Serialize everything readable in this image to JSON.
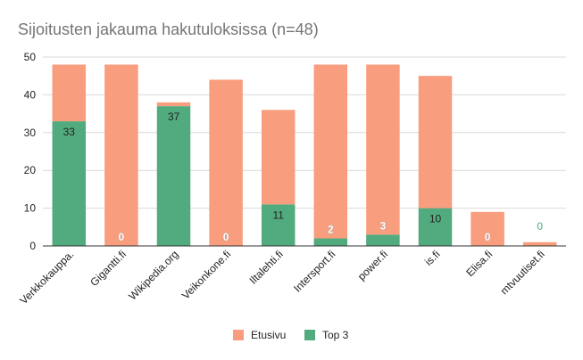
{
  "chart_data": {
    "type": "bar",
    "stacked": true,
    "title": "Sijoitusten jakauma hakutuloksissa (n=48)",
    "xlabel": "",
    "ylabel": "",
    "ylim": [
      0,
      50
    ],
    "yticks": [
      0,
      10,
      20,
      30,
      40,
      50
    ],
    "grid": true,
    "legend_position": "bottom",
    "categories": [
      "Verkkokauppa.",
      "Gigantti.fi",
      "Wikipedia.org",
      "Veikonkone.fi",
      "Iltalehti.fi",
      "Intersport.fi",
      "power.fi",
      "is.fi",
      "Elisa.fi",
      "mtvuutiset.fi"
    ],
    "series": [
      {
        "name": "Top 3",
        "color": "#52ab7e",
        "values": [
          33,
          0,
          37,
          0,
          11,
          2,
          3,
          10,
          0,
          0
        ]
      },
      {
        "name": "Etusivu",
        "color": "#f89d7d",
        "values": [
          15,
          48,
          1,
          44,
          25,
          46,
          45,
          35,
          9,
          1
        ]
      }
    ],
    "data_labels": [
      "33",
      "0",
      "37",
      "0",
      "11",
      "2",
      "3",
      "10",
      "0",
      "0"
    ],
    "legend_order": [
      "Etusivu",
      "Top 3"
    ]
  }
}
